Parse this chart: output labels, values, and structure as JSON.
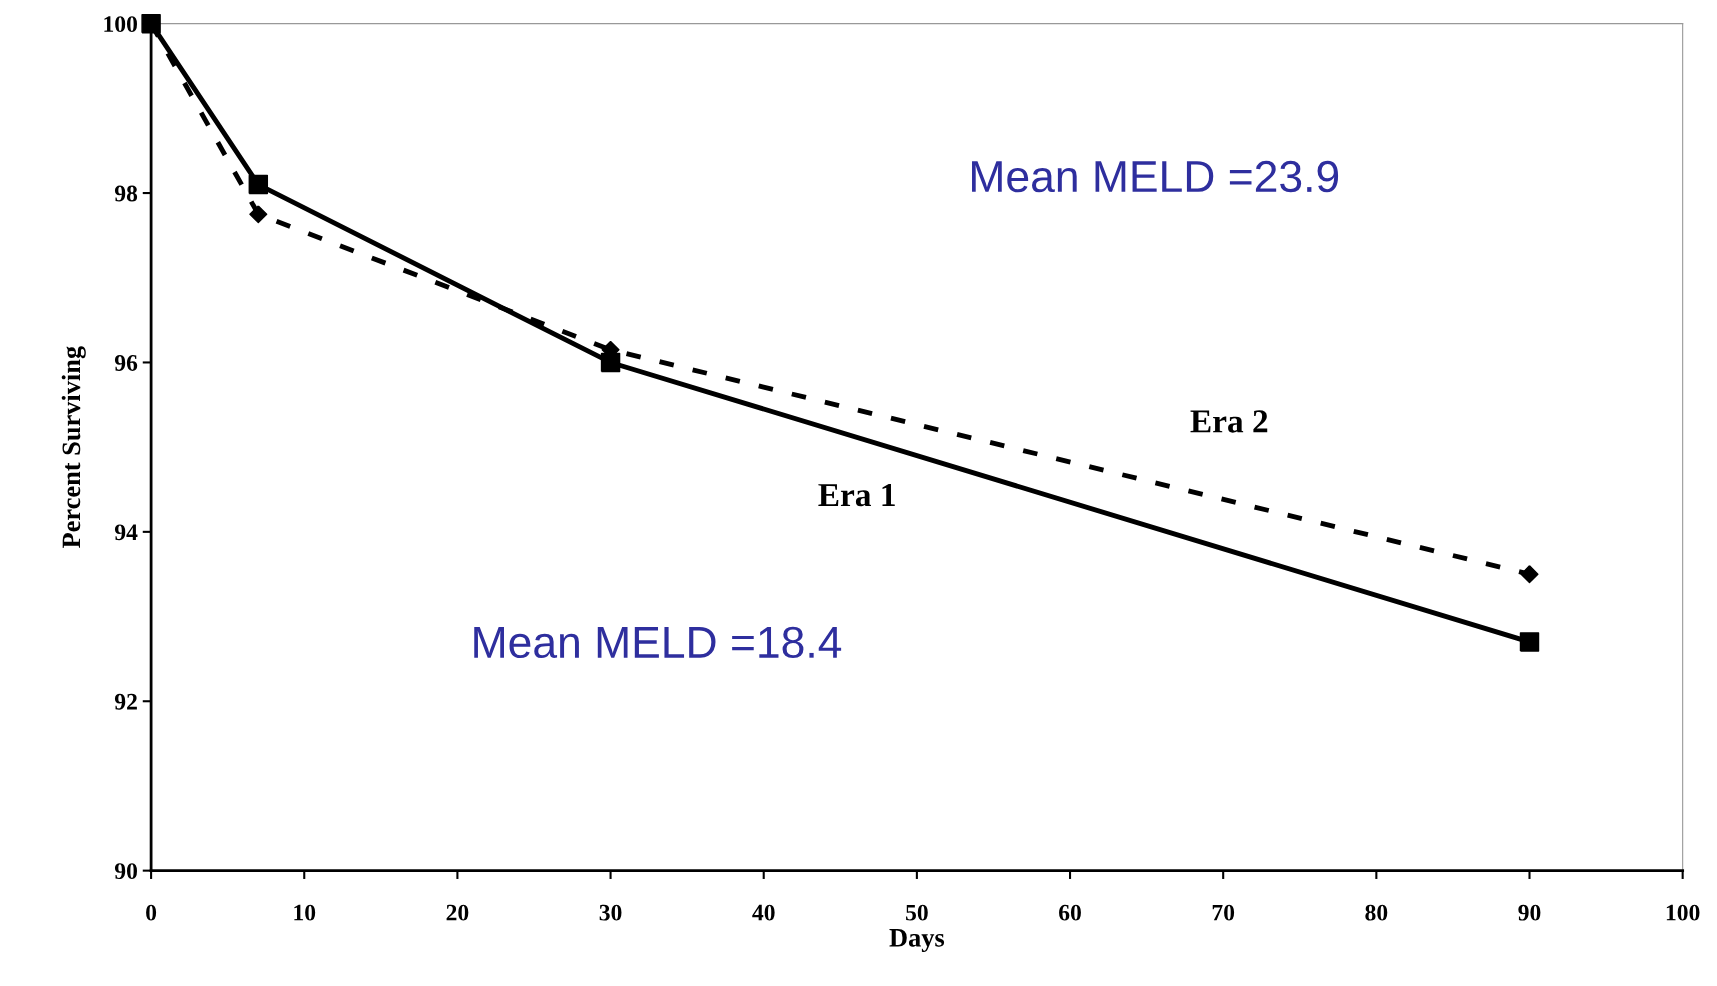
{
  "chart_data": {
    "type": "line",
    "xlabel": "Days",
    "ylabel": "Percent Surviving",
    "x": [
      0,
      7,
      30,
      90
    ],
    "series": [
      {
        "name": "Era 1",
        "color": "#000000",
        "values": [
          100,
          98.1,
          96.0,
          92.7
        ],
        "marker": "square",
        "line_style": "solid"
      },
      {
        "name": "Era 2",
        "color": "#000000",
        "values": [
          100,
          97.75,
          96.15,
          93.5
        ],
        "marker": "diamond",
        "line_style": "dashed"
      }
    ],
    "xlim": [
      0,
      100
    ],
    "xticks": [
      0,
      10,
      20,
      30,
      40,
      50,
      60,
      70,
      80,
      90,
      100
    ],
    "ylim": [
      90,
      100
    ],
    "yticks": [
      90,
      92,
      94,
      96,
      98,
      100
    ],
    "grid": false,
    "legend": false,
    "annotations": [
      "Mean MELD =23.9",
      "Mean MELD =18.4"
    ]
  }
}
